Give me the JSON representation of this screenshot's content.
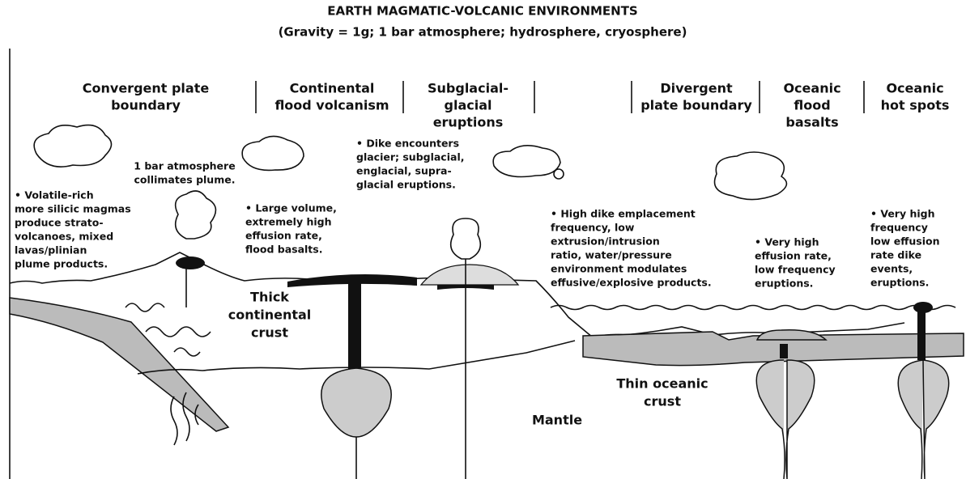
{
  "title": "EARTH MAGMATIC-VOLCANIC ENVIRONMENTS",
  "subtitle": "(Gravity = 1g; 1 bar atmosphere; hydrosphere, cryosphere)",
  "environments": [
    {
      "lines": [
        "Convergent plate",
        "boundary"
      ]
    },
    {
      "lines": [
        "Continental",
        "flood volcanism"
      ]
    },
    {
      "lines": [
        "Subglacial-",
        "glacial",
        "eruptions"
      ]
    },
    {
      "lines": [
        "Divergent",
        "plate boundary"
      ]
    },
    {
      "lines": [
        "Oceanic",
        "flood",
        "basalts"
      ]
    },
    {
      "lines": [
        "Oceanic",
        "hot spots"
      ]
    }
  ],
  "annotations": [
    {
      "lines": [
        "• Volatile-rich",
        "more silicic magmas",
        "produce strato-",
        "volcanoes, mixed",
        "lavas/plinian",
        "plume products."
      ]
    },
    {
      "lines": [
        "1 bar atmosphere",
        "collimates plume."
      ]
    },
    {
      "lines": [
        "• Large volume,",
        "extremely high",
        "effusion rate,",
        "flood basalts."
      ]
    },
    {
      "lines": [
        "• Dike encounters",
        "glacier; subglacial,",
        "englacial, supra-",
        "glacial eruptions."
      ]
    },
    {
      "lines": [
        "• High dike emplacement",
        "frequency, low",
        "extrusion/intrusion",
        "ratio, water/pressure",
        "environment modulates",
        "effusive/explosive products."
      ]
    },
    {
      "lines": [
        "• Very high",
        "effusion rate,",
        "low frequency",
        "eruptions."
      ]
    },
    {
      "lines": [
        "• Very high",
        "frequency",
        "low effusion",
        "rate dike",
        "events,",
        "eruptions."
      ]
    }
  ],
  "labels": [
    {
      "lines": [
        "Thick",
        "continental",
        "crust"
      ]
    },
    {
      "lines": [
        "Thin oceanic",
        "crust"
      ]
    },
    {
      "lines": [
        "Mantle"
      ]
    }
  ]
}
